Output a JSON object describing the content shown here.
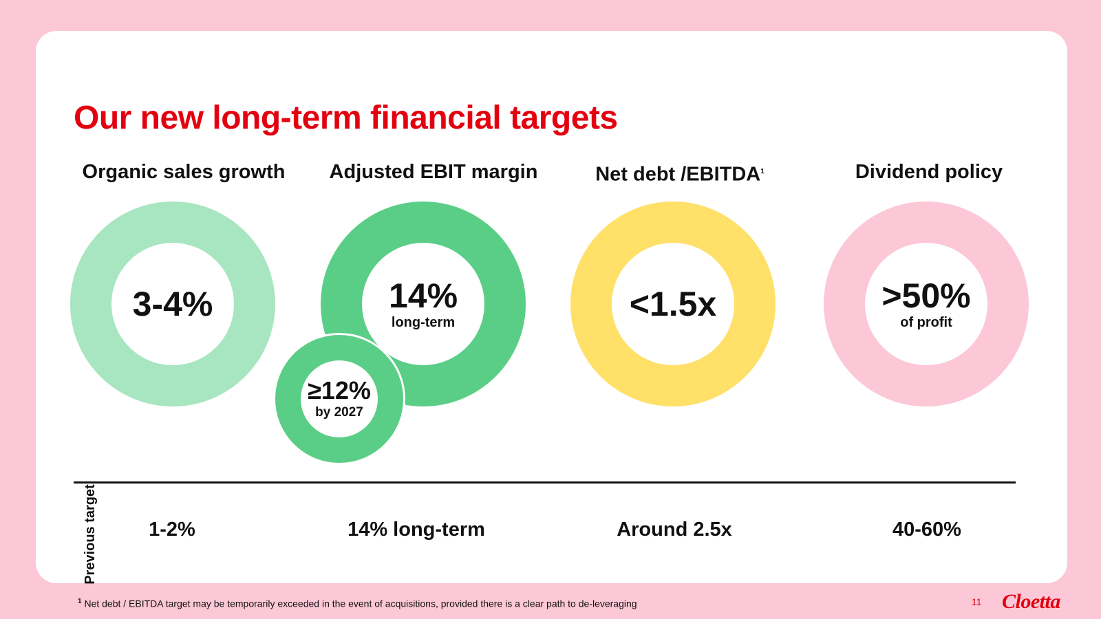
{
  "slide": {
    "title": "Our new long-term financial targets",
    "columns": [
      {
        "heading": "Organic sales growth",
        "value": "3-4%",
        "color": "#a8e5c1"
      },
      {
        "heading": "Adjusted EBIT margin",
        "value": "14%",
        "sub": "long-term",
        "color": "#5ace86",
        "secondary": {
          "value": "≥12%",
          "sub": "by 2027"
        }
      },
      {
        "heading": "Net debt /EBITDA",
        "heading_sup": "1",
        "value": "<1.5x",
        "color": "#ffe068"
      },
      {
        "heading": "Dividend policy",
        "value": ">50%",
        "sub": "of profit",
        "color": "#fcc7d6"
      }
    ],
    "previous": {
      "label": "Previous target",
      "values": [
        "1-2%",
        "14% long-term",
        "Around 2.5x",
        "40-60%"
      ]
    },
    "footnote": {
      "marker": "1",
      "text": "Net debt / EBITDA target may be temporarily exceeded in the event of acquisitions, provided there is a clear path to de-leveraging"
    },
    "page_number": "11",
    "brand": "Cloetta"
  }
}
